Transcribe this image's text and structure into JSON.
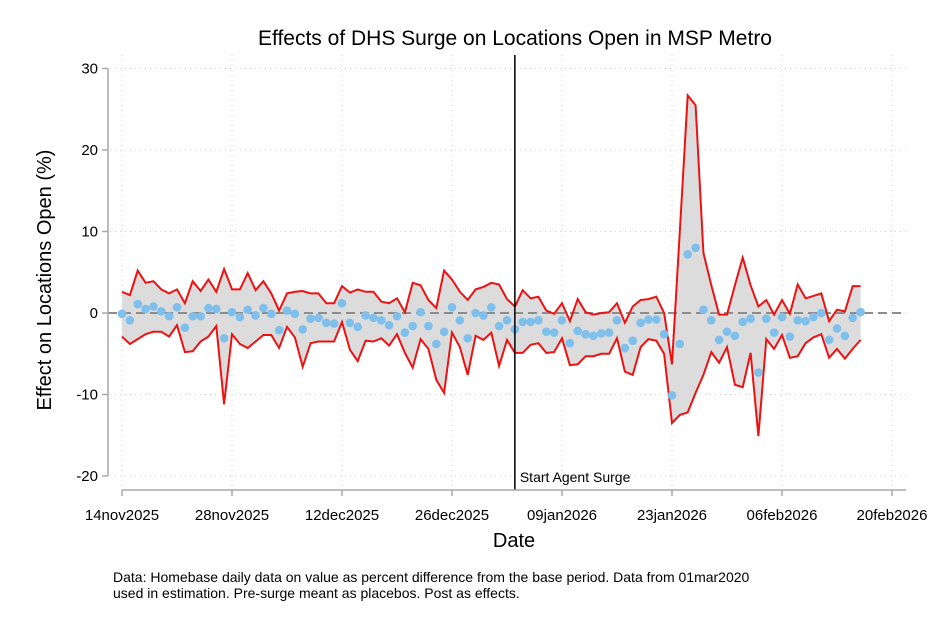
{
  "chart_data": {
    "type": "line",
    "title": "Effects of DHS Surge on Locations Open in MSP Metro",
    "xlabel": "Date",
    "ylabel": "Effect on Locations Open (%)",
    "ylim": [
      -20,
      30
    ],
    "yticks": [
      -20,
      -10,
      0,
      10,
      20,
      30
    ],
    "x_start_date": "14nov2025",
    "x_range_days": [
      -1.8,
      99.8
    ],
    "xticks": [
      {
        "day": 0,
        "label": "14nov2025"
      },
      {
        "day": 14,
        "label": "28nov2025"
      },
      {
        "day": 28,
        "label": "12dec2025"
      },
      {
        "day": 42,
        "label": "26dec2025"
      },
      {
        "day": 56,
        "label": "09jan2026"
      },
      {
        "day": 70,
        "label": "23jan2026"
      },
      {
        "day": 84,
        "label": "06feb2026"
      },
      {
        "day": 98,
        "label": "20feb2026"
      }
    ],
    "grid": true,
    "reference_hline": {
      "y": 0,
      "style": "dashed"
    },
    "reference_vline": {
      "day": 50,
      "label": "Start Agent Surge"
    },
    "series": [
      {
        "name": "Point estimate",
        "kind": "scatter",
        "color": "#7fbfec",
        "values": [
          -0.1,
          -0.9,
          1.1,
          0.5,
          0.8,
          0.2,
          -0.4,
          0.7,
          -1.8,
          -0.4,
          -0.4,
          0.6,
          0.5,
          -3.1,
          0.1,
          -0.5,
          0.4,
          -0.3,
          0.6,
          -0.1,
          -2.1,
          0.3,
          -0.1,
          -2.0,
          -0.7,
          -0.6,
          -1.2,
          -1.3,
          1.2,
          -1.2,
          -1.7,
          -0.3,
          -0.6,
          -0.9,
          -1.5,
          -0.4,
          -2.4,
          -1.6,
          0.1,
          -1.6,
          -3.8,
          -2.3,
          0.7,
          -0.9,
          -3.1,
          0.0,
          -0.3,
          0.7,
          -1.6,
          -0.9,
          -2.0,
          -1.1,
          -1.1,
          -0.9,
          -2.3,
          -2.4,
          -0.9,
          -3.7,
          -2.2,
          -2.6,
          -2.8,
          -2.5,
          -2.4,
          -0.9,
          -4.3,
          -3.4,
          -1.2,
          -0.8,
          -0.8,
          -2.6,
          -10.1,
          -3.8,
          7.2,
          8.0,
          0.4,
          -0.9,
          -3.3,
          -2.3,
          -2.8,
          -1.1,
          -0.7,
          -7.3,
          -0.7,
          -2.4,
          -0.5,
          -2.9,
          -0.9,
          -1.0,
          -0.5,
          0.0,
          -3.3,
          -1.9,
          -2.8,
          -0.6,
          0.1
        ]
      },
      {
        "name": "Upper bound",
        "kind": "line",
        "color": "#ee1111",
        "values": [
          2.6,
          2.2,
          5.2,
          3.7,
          3.9,
          2.9,
          2.4,
          2.9,
          1.2,
          3.9,
          2.7,
          4.1,
          2.6,
          5.4,
          2.9,
          2.9,
          4.9,
          2.8,
          3.9,
          2.4,
          0.3,
          2.4,
          2.6,
          2.7,
          2.4,
          2.4,
          1.2,
          1.2,
          3.3,
          2.5,
          2.9,
          2.6,
          2.6,
          1.4,
          1.2,
          1.8,
          0.1,
          3.7,
          3.4,
          1.6,
          0.6,
          5.2,
          4.1,
          2.6,
          1.6,
          2.9,
          3.2,
          3.7,
          3.5,
          1.7,
          0.8,
          2.8,
          1.8,
          2.0,
          0.3,
          -0.1,
          1.2,
          -1.0,
          1.7,
          0.1,
          -0.2,
          0.0,
          0.1,
          1.2,
          -1.2,
          0.8,
          1.6,
          1.7,
          2.0,
          0.0,
          -6.3,
          10.2,
          26.7,
          25.5,
          7.4,
          3.4,
          -0.2,
          -0.2,
          3.4,
          6.8,
          3.4,
          0.8,
          1.6,
          -0.2,
          1.6,
          -0.1,
          3.5,
          1.8,
          2.1,
          2.4,
          -1.0,
          0.4,
          0.2,
          3.3,
          3.3
        ]
      },
      {
        "name": "Lower bound",
        "kind": "line",
        "color": "#ee1111",
        "values": [
          -2.9,
          -3.8,
          -3.2,
          -2.6,
          -2.3,
          -2.3,
          -2.9,
          -1.5,
          -4.8,
          -4.7,
          -3.5,
          -2.9,
          -1.6,
          -11.2,
          -2.6,
          -3.8,
          -4.3,
          -3.5,
          -2.7,
          -2.7,
          -4.3,
          -1.7,
          -3.0,
          -6.6,
          -3.7,
          -3.5,
          -3.5,
          -3.5,
          -1.1,
          -4.5,
          -5.9,
          -3.4,
          -3.5,
          -3.1,
          -4.0,
          -2.6,
          -4.9,
          -6.7,
          -3.2,
          -4.4,
          -8.2,
          -9.8,
          -2.4,
          -4.2,
          -7.6,
          -2.8,
          -3.3,
          -2.4,
          -6.5,
          -3.3,
          -4.9,
          -4.9,
          -3.9,
          -3.7,
          -4.9,
          -4.8,
          -3.1,
          -6.4,
          -6.3,
          -5.3,
          -5.3,
          -5.0,
          -5.0,
          -3.1,
          -7.2,
          -7.6,
          -4.2,
          -3.2,
          -3.4,
          -5.0,
          -13.5,
          -12.5,
          -12.2,
          -9.8,
          -7.6,
          -4.8,
          -6.1,
          -4.2,
          -8.8,
          -9.1,
          -4.9,
          -15.1,
          -3.2,
          -4.4,
          -2.7,
          -5.5,
          -5.3,
          -3.7,
          -3.0,
          -2.6,
          -5.5,
          -4.4,
          -5.6,
          -4.4,
          -3.3
        ]
      }
    ],
    "band_fill_color": "#dcdcdc",
    "note": [
      "Data: Homebase daily data on value as percent difference from the base period. Data from 01mar2020",
      "used in estimation. Pre-surge meant as placebos. Post as effects."
    ]
  }
}
